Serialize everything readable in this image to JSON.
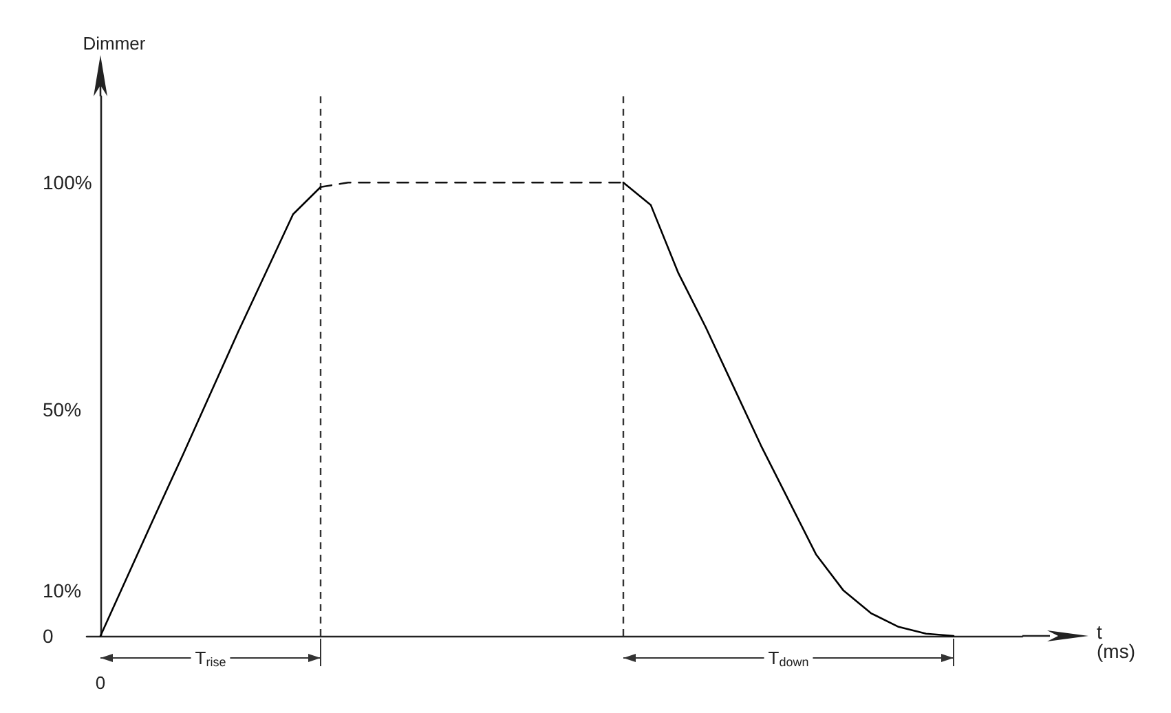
{
  "chart_data": {
    "type": "line",
    "ylabel": "Dimmer",
    "xlabel": "t\n(ms)",
    "categories": [
      null,
      null,
      null,
      null,
      null,
      null,
      null,
      null,
      null,
      null,
      null,
      null,
      null,
      null,
      null,
      null,
      null,
      null,
      null,
      null,
      null,
      null,
      null,
      null,
      null,
      null,
      null,
      null,
      null,
      null,
      null,
      null,
      null,
      null
    ],
    "series": [
      {
        "color": "#000000",
        "line_style": "solid",
        "values": [
          0,
          13.4,
          26.8,
          40,
          53.5,
          67,
          80,
          93,
          99,
          null,
          null,
          null,
          null,
          null,
          null,
          null,
          null,
          null,
          null,
          100,
          95,
          80,
          68,
          55,
          42,
          30,
          18,
          10,
          5,
          2,
          0.5,
          0,
          null,
          null
        ]
      },
      {
        "color": "#111111",
        "line_style": "dashed",
        "values": [
          null,
          null,
          null,
          null,
          null,
          null,
          null,
          null,
          99,
          100,
          100,
          100,
          100,
          100,
          100,
          100,
          100,
          100,
          100,
          100,
          null,
          null,
          null,
          null,
          null,
          null,
          null,
          null,
          null,
          null,
          null,
          null,
          null,
          null
        ]
      }
    ],
    "ylim": [
      0,
      119
    ],
    "yticks": [
      {
        "value": 0,
        "label": "0"
      },
      {
        "value": 10,
        "label": "10%"
      },
      {
        "value": 50,
        "label": "50%"
      },
      {
        "value": 100,
        "label": "100%"
      }
    ],
    "annotations": [
      "0",
      "T$_{rise}$",
      "T$_{down}$"
    ],
    "grid": false,
    "marker": "none"
  }
}
